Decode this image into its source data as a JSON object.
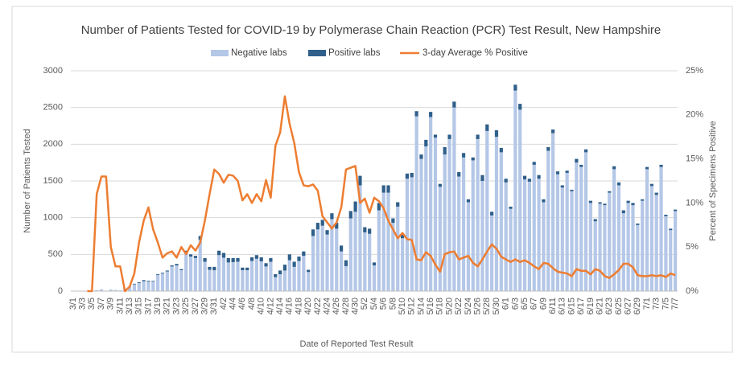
{
  "chart_data": {
    "type": "bar_line",
    "title": "Number of Patients Tested for COVID-19 by Polymerase Chain Reaction (PCR) Test Result, New Hampshire",
    "x_label": "Date of Reported Test Result",
    "y_label": "Number of Patients Tested",
    "y2_label": "Percent of Specimens Positive",
    "categories": [
      "3/1",
      null,
      "3/3",
      null,
      "3/5",
      null,
      "3/7",
      null,
      "3/9",
      null,
      "3/11",
      null,
      "3/13",
      null,
      "3/15",
      null,
      "3/17",
      null,
      "3/19",
      null,
      "3/21",
      null,
      "3/23",
      null,
      "3/25",
      null,
      "3/27",
      null,
      "3/29",
      null,
      "3/31",
      null,
      "4/2",
      null,
      "4/4",
      null,
      "4/6",
      null,
      "4/8",
      null,
      "4/10",
      null,
      "4/12",
      null,
      "4/14",
      null,
      "4/16",
      null,
      "4/18",
      null,
      "4/20",
      null,
      "4/22",
      null,
      "4/24",
      null,
      "4/26",
      null,
      "4/28",
      null,
      "4/30",
      null,
      "5/2",
      null,
      "5/4",
      null,
      "5/6",
      null,
      "5/8",
      null,
      "5/10",
      null,
      "5/12",
      null,
      "5/14",
      null,
      "5/16",
      null,
      "5/18",
      null,
      "5/20",
      null,
      "5/22",
      null,
      "5/24",
      null,
      "5/26",
      null,
      "5/28",
      null,
      "5/30",
      null,
      "6/1",
      null,
      "6/3",
      null,
      "6/5",
      null,
      "6/7",
      null,
      "6/9",
      null,
      "6/11",
      null,
      "6/13",
      null,
      "6/15",
      null,
      "6/17",
      null,
      "6/19",
      null,
      "6/21",
      null,
      "6/23",
      null,
      "6/25",
      null,
      "6/27",
      null,
      "6/29",
      null,
      "7/1",
      null,
      "7/3",
      null,
      "7/5",
      null,
      "7/7"
    ],
    "series": [
      {
        "name": "Negative labs",
        "color": "#b4c7e7",
        "stack": true,
        "values": [
          0,
          0,
          0,
          0,
          0,
          8,
          17,
          5,
          19,
          14,
          10,
          29,
          57,
          93,
          110,
          135,
          130,
          132,
          220,
          240,
          268,
          335,
          350,
          285,
          510,
          470,
          450,
          700,
          400,
          290,
          285,
          490,
          455,
          390,
          395,
          400,
          285,
          285,
          410,
          440,
          405,
          335,
          400,
          190,
          230,
          280,
          420,
          330,
          410,
          480,
          260,
          750,
          840,
          890,
          770,
          980,
          850,
          540,
          340,
          990,
          1080,
          1440,
          800,
          780,
          350,
          1100,
          1340,
          1340,
          930,
          1150,
          720,
          1530,
          1550,
          2380,
          1800,
          1970,
          2370,
          2090,
          1420,
          1860,
          2070,
          2500,
          1560,
          1820,
          1210,
          1780,
          2070,
          1500,
          2180,
          1030,
          2100,
          1890,
          1480,
          1120,
          2730,
          2470,
          1520,
          1490,
          1720,
          1530,
          1210,
          1910,
          2150,
          1590,
          1410,
          1610,
          1360,
          1750,
          1690,
          1890,
          1200,
          950,
          1190,
          1170,
          1340,
          1660,
          1440,
          1060,
          1200,
          1170,
          900,
          1230,
          1660,
          1430,
          1310,
          1690,
          1020,
          830,
          1090
        ]
      },
      {
        "name": "Positive labs",
        "color": "#2f5f8a",
        "stack": true,
        "values": [
          0,
          0,
          0,
          0,
          0,
          2,
          3,
          0,
          1,
          1,
          0,
          1,
          3,
          7,
          10,
          15,
          10,
          8,
          10,
          10,
          12,
          15,
          20,
          15,
          40,
          30,
          30,
          50,
          50,
          40,
          45,
          60,
          65,
          60,
          55,
          50,
          35,
          35,
          50,
          50,
          55,
          45,
          50,
          40,
          50,
          80,
          80,
          70,
          60,
          60,
          30,
          90,
          90,
          80,
          60,
          80,
          80,
          80,
          80,
          100,
          140,
          130,
          70,
          70,
          40,
          100,
          100,
          100,
          60,
          60,
          50,
          70,
          60,
          70,
          60,
          90,
          70,
          40,
          40,
          100,
          60,
          80,
          60,
          60,
          40,
          40,
          60,
          80,
          90,
          50,
          90,
          60,
          50,
          30,
          80,
          80,
          50,
          40,
          40,
          50,
          40,
          50,
          50,
          40,
          30,
          30,
          20,
          50,
          30,
          40,
          30,
          30,
          20,
          20,
          20,
          40,
          40,
          40,
          30,
          30,
          20,
          20,
          30,
          30,
          30,
          30,
          20,
          20,
          20
        ]
      },
      {
        "name": "3-day Average % Positive",
        "color": "#ed7d31",
        "axis": "y2",
        "line": true,
        "values": [
          null,
          null,
          null,
          0,
          0,
          11,
          13,
          13,
          5,
          2.8,
          2.8,
          0,
          0.5,
          2,
          5.5,
          8,
          9.5,
          7,
          5.5,
          3.8,
          4.3,
          4.5,
          3.8,
          5,
          4.2,
          5.2,
          4.6,
          5.5,
          8,
          11,
          13.8,
          13.3,
          12.3,
          13.2,
          13.1,
          12.5,
          10.3,
          11,
          10,
          11,
          10.2,
          12.6,
          10.6,
          16.5,
          18,
          22.1,
          19,
          16.8,
          13.5,
          12,
          11.9,
          12.1,
          11.4,
          8.5,
          7.8,
          7.1,
          7.8,
          9.5,
          13.8,
          14,
          14.2,
          10,
          10.5,
          8.9,
          10.6,
          10.2,
          9.4,
          8,
          7,
          6,
          6.6,
          5.9,
          5.8,
          3.6,
          3.5,
          4.4,
          4,
          3,
          2.2,
          4.2,
          4.4,
          4.5,
          3.6,
          3.8,
          4,
          3.2,
          2.8,
          3.6,
          4.5,
          5.3,
          4.8,
          3.9,
          3.6,
          3.3,
          3.6,
          3.3,
          3.5,
          3.2,
          2.8,
          2.5,
          3.2,
          3.1,
          2.6,
          2.2,
          2.1,
          2,
          1.7,
          2.5,
          2.3,
          2.3,
          1.9,
          2.5,
          2.3,
          1.7,
          1.5,
          1.9,
          2.4,
          3.1,
          3.1,
          2.7,
          1.8,
          1.7,
          1.7,
          1.8,
          1.7,
          1.8,
          1.6,
          2,
          1.8
        ]
      }
    ],
    "ylim": [
      0,
      3000
    ],
    "yticks": [
      0,
      500,
      1000,
      1500,
      2000,
      2500,
      3000
    ],
    "y2lim": [
      0,
      25
    ],
    "y2ticks": [
      {
        "value": 0,
        "label": "0%"
      },
      {
        "value": 5,
        "label": "5%"
      },
      {
        "value": 10,
        "label": "10%"
      },
      {
        "value": 15,
        "label": "15%"
      },
      {
        "value": 20,
        "label": "20%"
      },
      {
        "value": 25,
        "label": "25%"
      }
    ],
    "grid": true,
    "legend": "top"
  }
}
